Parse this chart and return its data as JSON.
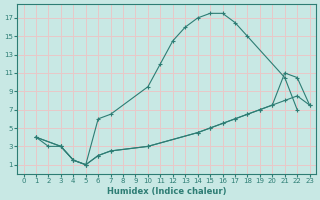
{
  "xlabel": "Humidex (Indice chaleur)",
  "bg_color": "#c8e8e4",
  "grid_color": "#e8c8c8",
  "line_color": "#2d7d74",
  "xlim": [
    -0.5,
    23.5
  ],
  "ylim": [
    0,
    18.5
  ],
  "xticks": [
    0,
    1,
    2,
    3,
    4,
    5,
    6,
    7,
    8,
    9,
    10,
    11,
    12,
    13,
    14,
    15,
    16,
    17,
    18,
    19,
    20,
    21,
    22,
    23
  ],
  "yticks": [
    1,
    3,
    5,
    7,
    9,
    11,
    13,
    15,
    17
  ],
  "curve1_x": [
    1,
    2,
    3,
    4,
    5,
    6,
    7,
    10,
    11,
    12,
    13,
    14,
    15,
    16,
    17,
    18,
    21,
    22
  ],
  "curve1_y": [
    4,
    3,
    3,
    1.5,
    1,
    6,
    6.5,
    9.5,
    12,
    14.5,
    16,
    17,
    17.5,
    17.5,
    16.5,
    15,
    10.5,
    7
  ],
  "curve2_x": [
    1,
    3,
    4,
    5,
    6,
    7,
    10,
    14,
    15,
    16,
    17,
    18,
    19,
    20,
    21,
    22,
    23
  ],
  "curve2_y": [
    4,
    3,
    1.5,
    1,
    2,
    2.5,
    3,
    4.5,
    5,
    5.5,
    6,
    6.5,
    7,
    7.5,
    8,
    8.5,
    7.5
  ],
  "curve3_x": [
    1,
    3,
    4,
    5,
    6,
    7,
    10,
    14,
    15,
    16,
    17,
    18,
    19,
    20,
    21,
    22,
    23
  ],
  "curve3_y": [
    4,
    3,
    1.5,
    1,
    2,
    2.5,
    3,
    4.5,
    5,
    5.5,
    6,
    6.5,
    7,
    7.5,
    11,
    10.5,
    7.5
  ]
}
